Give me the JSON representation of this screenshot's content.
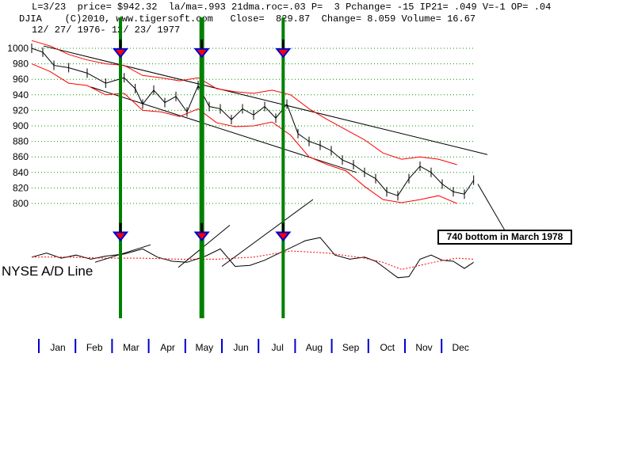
{
  "header": {
    "line1": "L=3/23  price= $942.32  la/ma=.993 21dma.roc=.03 P=  3 Pchange= -15 IP21= .049 V=-1 OP= .04",
    "line2": "DJIA    (C)2010, www.tigersoft.com   Close=  829.87  Change= 8.059 Volume= 16.67",
    "line3": "12/ 27/ 1976- 12/ 23/ 1977"
  },
  "callout": "740 bottom in March 1978",
  "ad_label": "NYSE A/D Line",
  "colors": {
    "price": "#000000",
    "band": "#ff0000",
    "grid": "#009900",
    "signal": "#008000",
    "axis_tick": "#0000cc",
    "arrow_fill": "#ff0000",
    "arrow_edge": "#0000cc"
  },
  "chart_data": {
    "type": "line",
    "title": "DJIA",
    "x_months": [
      "Jan",
      "Feb",
      "Mar",
      "Apr",
      "May",
      "Jun",
      "Jul",
      "Aug",
      "Sep",
      "Oct",
      "Nov",
      "Dec"
    ],
    "y_ticks": [
      1000,
      980,
      960,
      940,
      920,
      900,
      880,
      860,
      840,
      820,
      800
    ],
    "ylim": [
      790,
      1010
    ],
    "grid": true,
    "series": [
      {
        "name": "DJIA",
        "x": [
          0,
          0.3,
          0.6,
          1.0,
          1.5,
          2.0,
          2.5,
          2.8,
          3.0,
          3.3,
          3.6,
          3.9,
          4.2,
          4.5,
          4.8,
          5.1,
          5.4,
          5.7,
          6.0,
          6.3,
          6.6,
          6.9,
          7.2,
          7.5,
          7.8,
          8.1,
          8.4,
          8.7,
          9.0,
          9.3,
          9.6,
          9.9,
          10.2,
          10.5,
          10.8,
          11.1,
          11.4,
          11.7,
          11.95
        ],
        "values": [
          1000,
          995,
          978,
          975,
          968,
          955,
          962,
          948,
          928,
          946,
          930,
          938,
          918,
          952,
          925,
          922,
          908,
          922,
          914,
          925,
          910,
          928,
          890,
          880,
          875,
          868,
          856,
          850,
          840,
          832,
          815,
          810,
          832,
          848,
          840,
          825,
          815,
          812,
          830
        ]
      },
      {
        "name": "Upper band",
        "x": [
          0,
          0.5,
          1,
          1.5,
          2,
          2.5,
          3,
          3.5,
          4,
          4.5,
          5,
          5.5,
          6,
          6.5,
          7,
          7.5,
          8,
          8.5,
          9,
          9.5,
          10,
          10.5,
          11,
          11.5
        ],
        "values": [
          1010,
          1003,
          992,
          985,
          980,
          978,
          965,
          962,
          958,
          962,
          948,
          944,
          942,
          946,
          940,
          922,
          908,
          895,
          882,
          865,
          857,
          860,
          857,
          850
        ]
      },
      {
        "name": "Lower band",
        "x": [
          0,
          0.5,
          1,
          1.5,
          2,
          2.5,
          3,
          3.5,
          4,
          4.5,
          5,
          5.5,
          6,
          6.5,
          7,
          7.5,
          8,
          8.5,
          9,
          9.5,
          10,
          10.5,
          11,
          11.5
        ],
        "values": [
          980,
          970,
          955,
          952,
          940,
          942,
          920,
          918,
          912,
          922,
          904,
          899,
          900,
          905,
          888,
          860,
          850,
          842,
          822,
          805,
          801,
          805,
          810,
          800
        ]
      },
      {
        "name": "A/D Line",
        "x": [
          0,
          0.4,
          0.8,
          1.2,
          1.6,
          2.0,
          2.5,
          3.0,
          3.4,
          3.8,
          4.2,
          4.7,
          5.1,
          5.5,
          5.9,
          6.3,
          6.7,
          7.0,
          7.4,
          7.8,
          8.2,
          8.6,
          9.0,
          9.3,
          9.6,
          9.9,
          10.2,
          10.5,
          10.8,
          11.1,
          11.4,
          11.7,
          11.95
        ],
        "values": [
          54,
          58,
          53,
          56,
          52,
          55,
          57,
          62,
          54,
          50,
          49,
          55,
          62,
          45,
          46,
          51,
          58,
          63,
          70,
          73,
          56,
          52,
          54,
          50,
          42,
          34,
          35,
          52,
          56,
          51,
          50,
          43,
          49
        ]
      },
      {
        "name": "A/D MA",
        "x": [
          0,
          1,
          2,
          3,
          4,
          5,
          6,
          7,
          8,
          9,
          9.5,
          10,
          10.5,
          11,
          11.5,
          11.95
        ],
        "values": [
          54,
          54,
          53,
          53,
          52,
          52,
          54,
          60,
          58,
          53,
          49,
          42,
          46,
          50,
          53,
          52
        ]
      }
    ],
    "signals_month_index": [
      2.4,
      4.6,
      6.8
    ],
    "x_range": [
      0,
      12
    ]
  }
}
